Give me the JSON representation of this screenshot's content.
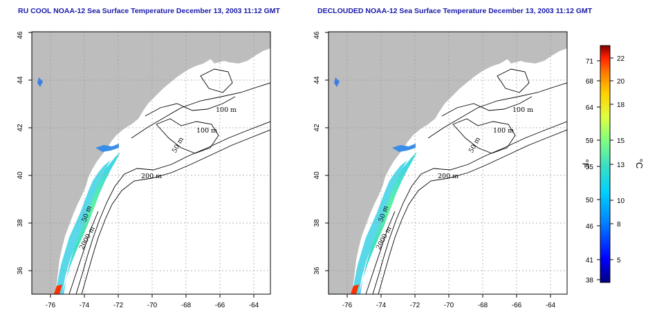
{
  "panels": [
    {
      "title": "RU COOL NOAA-12 Sea Surface Temperature December 13, 2003 11:12 GMT",
      "contour_labels": [
        "100 m",
        "100 m",
        "50 m",
        "200 m",
        "50 m",
        "2000 m"
      ]
    },
    {
      "title": "DECLOUDED NOAA-12 Sea Surface Temperature December 13, 2003 11:12 GMT",
      "contour_labels": [
        "100 m",
        "100 m",
        "50 m",
        "200 m",
        "50 m",
        "2000 m"
      ]
    }
  ],
  "axes": {
    "x_ticks": [
      "-76",
      "-74",
      "-72",
      "-70",
      "-68",
      "-66",
      "-64"
    ],
    "y_ticks": [
      "36",
      "38",
      "40",
      "42",
      "44",
      "46"
    ]
  },
  "colorbar": {
    "fahrenheit_unit": "°F",
    "celsius_unit": "°C",
    "fahrenheit_ticks": [
      "71",
      "68",
      "64",
      "59",
      "55",
      "50",
      "46",
      "41",
      "38"
    ],
    "celsius_ticks": [
      "22",
      "20",
      "18",
      "15",
      "13",
      "10",
      "8",
      "5"
    ],
    "colors": [
      "#000080",
      "#0000ff",
      "#0080ff",
      "#00d0ff",
      "#40e0c0",
      "#80ff80",
      "#e0ff40",
      "#ffd000",
      "#ff8000",
      "#ff2000",
      "#800000"
    ]
  },
  "colors": {
    "land": "#bdbdbd",
    "ocean": "#ffffff",
    "title": "#1a1aa8",
    "grid": "#999999"
  }
}
